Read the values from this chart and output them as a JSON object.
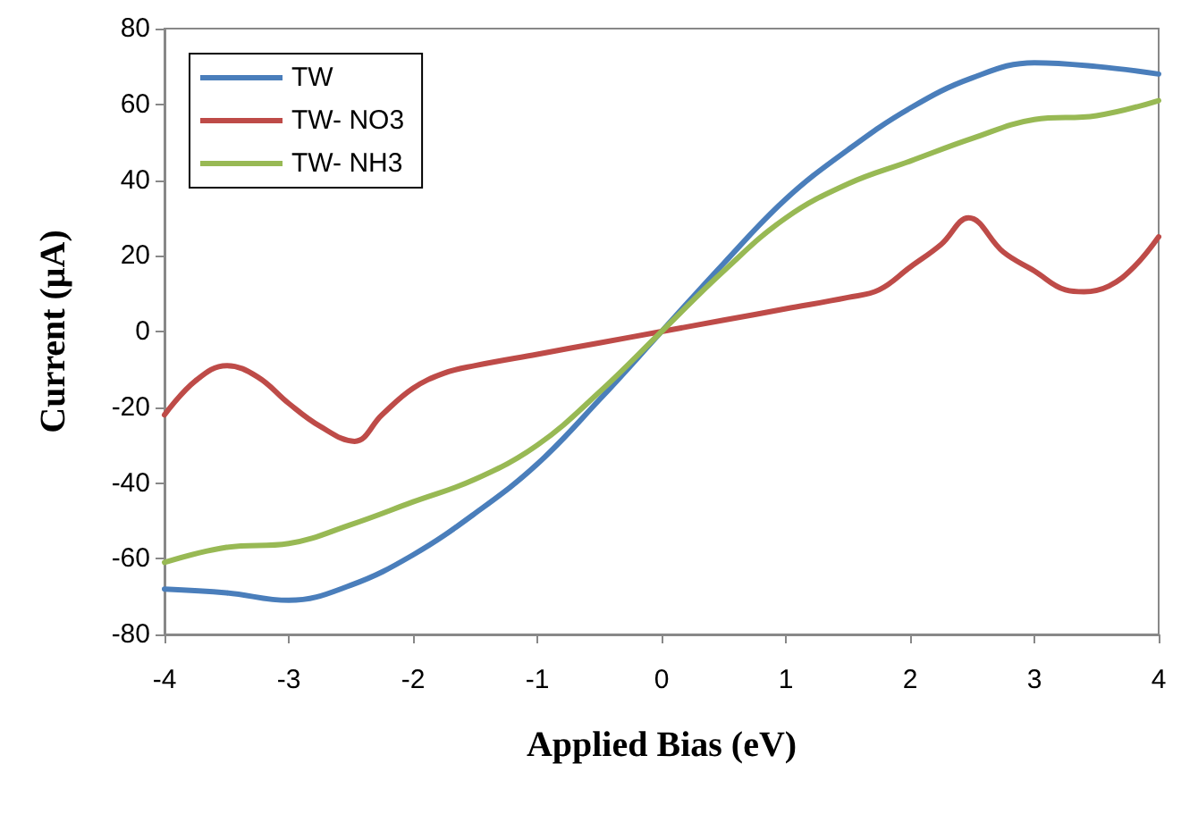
{
  "chart_data": {
    "type": "line",
    "xlabel": "Applied Bias (eV)",
    "ylabel": "Current (μA)",
    "xlim": [
      -4,
      4
    ],
    "xticks": [
      -4,
      -3,
      -2,
      -1,
      0,
      1,
      2,
      3,
      4
    ],
    "ylim": [
      -80,
      80
    ],
    "yticks": [
      -80,
      -60,
      -40,
      -20,
      0,
      20,
      40,
      60,
      80
    ],
    "grid": false,
    "legend": "top left",
    "marker": "none",
    "line_style": "solid",
    "series": [
      {
        "name": "TW",
        "color": "#4a7ebb",
        "x": [
          -4,
          -3.5,
          -3,
          -2.5,
          -2,
          -1.5,
          -1,
          -0.5,
          0,
          0.5,
          1,
          1.5,
          2,
          2.5,
          3,
          3.5,
          4
        ],
        "values": [
          -68,
          -69,
          -71,
          -67,
          -59,
          -48,
          -35,
          -18,
          0,
          18,
          35,
          48,
          59,
          67,
          71,
          70,
          68
        ]
      },
      {
        "name": "TW- NO3",
        "color": "#be4b48",
        "x": [
          -4,
          -3.75,
          -3.5,
          -3.25,
          -3,
          -2.75,
          -2.47,
          -2.25,
          -2,
          -1.75,
          -1.5,
          -1,
          -0.5,
          0,
          0.5,
          1,
          1.5,
          1.75,
          2,
          2.25,
          2.47,
          2.75,
          3,
          3.25,
          3.4,
          3.6,
          3.8,
          4
        ],
        "values": [
          -22,
          -13,
          -9,
          -12,
          -19,
          -25,
          -29,
          -22,
          -15,
          -11,
          -9,
          -6,
          -3,
          0,
          3,
          6,
          9,
          11,
          17,
          23,
          30,
          21,
          16,
          11,
          10.5,
          12,
          17,
          25
        ]
      },
      {
        "name": "TW- NH3",
        "color": "#98b954",
        "x": [
          -4,
          -3.5,
          -3,
          -2.5,
          -2,
          -1.5,
          -1,
          -0.5,
          0,
          0.5,
          1,
          1.5,
          2,
          2.5,
          3,
          3.5,
          4
        ],
        "values": [
          -61,
          -57,
          -56,
          -51,
          -45,
          -39,
          -30,
          -16,
          0,
          16,
          30,
          39,
          45,
          51,
          56,
          57,
          61
        ]
      }
    ]
  }
}
